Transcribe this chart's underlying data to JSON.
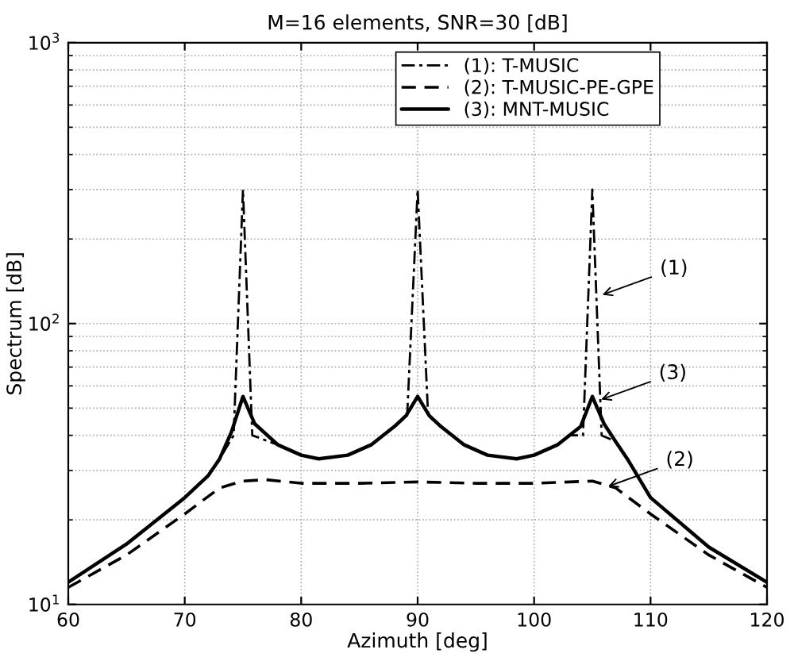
{
  "chart_data": {
    "type": "line",
    "title": "M=16 elements, SNR=30 [dB]",
    "xlabel": "Azimuth [deg]",
    "ylabel": "Spectrum [dB]",
    "log": "y",
    "grid": true,
    "legend": "top right",
    "xlim": [
      60,
      120
    ],
    "xticks": [
      60,
      70,
      80,
      90,
      100,
      110,
      120
    ],
    "ylim": [
      10,
      1000
    ],
    "yticks": [
      {
        "value": 10,
        "label": "10$^{1}$"
      },
      {
        "value": 100,
        "label": "10$^{2}$"
      },
      {
        "value": 1000,
        "label": "10$^{3}$"
      }
    ],
    "series": [
      {
        "name": "(1): T-MUSIC",
        "color": "#000000",
        "line_style": "dashdot",
        "x": [
          60,
          65,
          70,
          72,
          73,
          74.2,
          75,
          75.8,
          78,
          80,
          81.5,
          84,
          86,
          88,
          89.1,
          90,
          90.9,
          92,
          94,
          96,
          98.5,
          100,
          102,
          103,
          104.2,
          105,
          105.8,
          107,
          108,
          110,
          115,
          120
        ],
        "values": [
          12,
          16.4,
          24,
          28.7,
          33,
          40,
          300,
          40,
          37,
          34,
          33,
          34,
          37,
          43,
          47,
          300,
          47,
          43,
          37,
          34,
          33,
          34,
          37,
          40,
          40,
          300,
          40,
          38,
          33,
          24,
          16,
          12
        ]
      },
      {
        "name": "(2): T-MUSIC-PE-GPE",
        "color": "#000000",
        "line_style": "dashed",
        "x": [
          60,
          65,
          70,
          73,
          75,
          77,
          80,
          85,
          90,
          95,
          100,
          105,
          107,
          110,
          115,
          120
        ],
        "values": [
          11.5,
          15,
          21,
          26,
          27.5,
          27.8,
          27,
          27,
          27.3,
          27,
          27,
          27.5,
          26,
          21,
          15,
          11.5
        ]
      },
      {
        "name": "(3): MNT-MUSIC",
        "color": "#000000",
        "line_style": "solid",
        "x": [
          60,
          65,
          70,
          72,
          73,
          74,
          75,
          76,
          78,
          80,
          81.5,
          84,
          86,
          88,
          89,
          90,
          91,
          92,
          94,
          96,
          98.5,
          100,
          102,
          104,
          105,
          106,
          107,
          108,
          110,
          115,
          120
        ],
        "values": [
          12,
          16.4,
          24,
          28.7,
          33,
          41,
          55,
          44,
          37,
          34,
          33,
          34,
          37,
          43,
          47,
          55,
          47,
          43,
          37,
          34,
          33,
          34,
          37,
          43,
          55,
          44,
          38,
          33,
          24,
          16,
          12
        ]
      }
    ],
    "annotations": [
      {
        "text": "(1)",
        "x": 105.5,
        "y": 125
      },
      {
        "text": "(3)",
        "x": 105.4,
        "y": 53
      },
      {
        "text": "(2)",
        "x": 106,
        "y": 26
      }
    ]
  }
}
